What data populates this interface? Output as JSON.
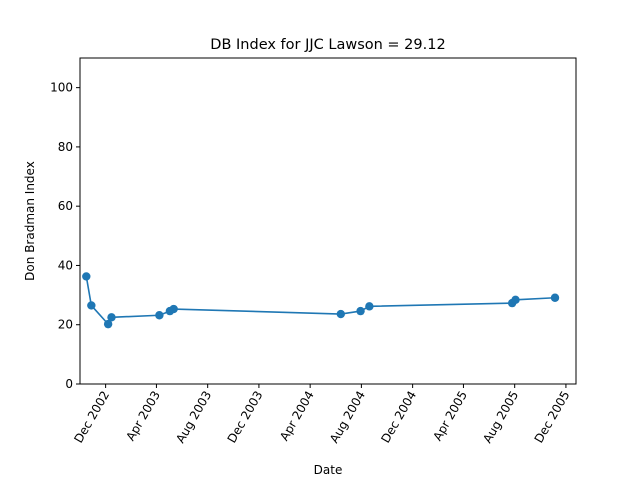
{
  "chart_data": {
    "type": "line",
    "title": "DB Index for JJC Lawson = 29.12",
    "xlabel": "Date",
    "ylabel": "Don Bradman Index",
    "ylim": [
      0,
      110
    ],
    "yticks": [
      0,
      20,
      40,
      60,
      80,
      100
    ],
    "xlim": [
      "2002-10-01",
      "2005-12-25"
    ],
    "xticks": [
      {
        "date": "2002-12-01",
        "label": "Dec 2002"
      },
      {
        "date": "2003-04-01",
        "label": "Apr 2003"
      },
      {
        "date": "2003-08-01",
        "label": "Aug 2003"
      },
      {
        "date": "2003-12-01",
        "label": "Dec 2003"
      },
      {
        "date": "2004-04-01",
        "label": "Apr 2004"
      },
      {
        "date": "2004-08-01",
        "label": "Aug 2004"
      },
      {
        "date": "2004-12-01",
        "label": "Dec 2004"
      },
      {
        "date": "2005-04-01",
        "label": "Apr 2005"
      },
      {
        "date": "2005-08-01",
        "label": "Aug 2005"
      },
      {
        "date": "2005-12-01",
        "label": "Dec 2005"
      }
    ],
    "grid": false,
    "legend": "none",
    "color": "#1f77b4",
    "series": [
      {
        "points": [
          {
            "x": "2002-10-16",
            "y": 36.3
          },
          {
            "x": "2002-10-28",
            "y": 26.5
          },
          {
            "x": "2002-12-07",
            "y": 20.2
          },
          {
            "x": "2002-12-15",
            "y": 22.5
          },
          {
            "x": "2003-04-08",
            "y": 23.2
          },
          {
            "x": "2003-05-03",
            "y": 24.6
          },
          {
            "x": "2003-05-12",
            "y": 25.3
          },
          {
            "x": "2004-06-13",
            "y": 23.6
          },
          {
            "x": "2004-07-30",
            "y": 24.6
          },
          {
            "x": "2004-08-20",
            "y": 26.2
          },
          {
            "x": "2005-07-26",
            "y": 27.3
          },
          {
            "x": "2005-08-03",
            "y": 28.4
          },
          {
            "x": "2005-11-05",
            "y": 29.1
          }
        ]
      }
    ]
  }
}
